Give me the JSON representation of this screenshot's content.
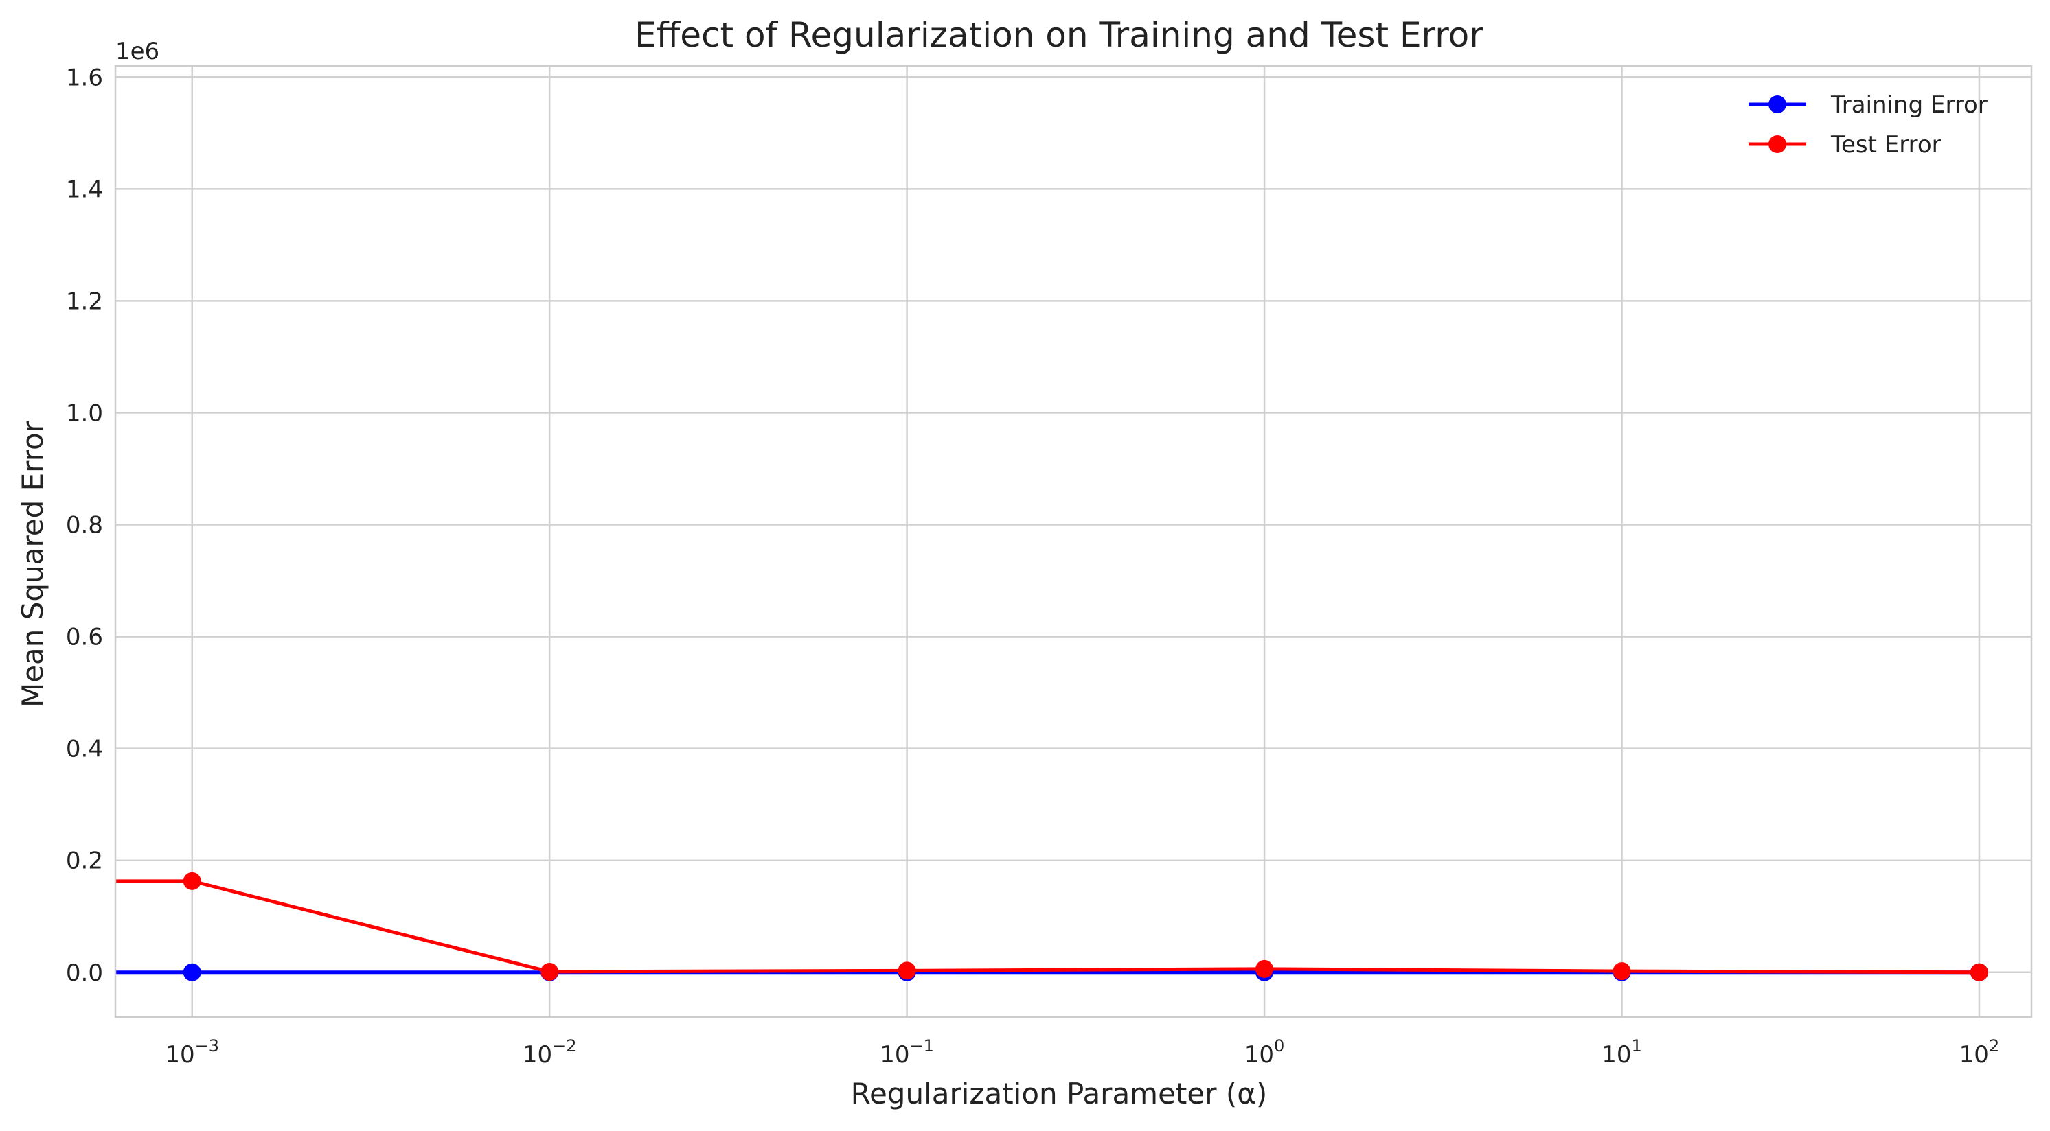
{
  "chart_data": {
    "type": "line",
    "title": "Effect of Regularization on Training and Test Error",
    "xlabel": "Regularization Parameter (α)",
    "ylabel": "Mean Squared Error",
    "y_offset_text": "1e6",
    "x_scale": "log",
    "xlim": [
      0.00061,
      140
    ],
    "ylim": [
      -0.08,
      1.62
    ],
    "y_unit_multiplier": 1000000,
    "x": [
      0.001,
      0.01,
      0.1,
      1,
      10,
      100
    ],
    "x_ticks": [
      {
        "value": 0.001,
        "base": "10",
        "exp": "−3"
      },
      {
        "value": 0.01,
        "base": "10",
        "exp": "−2"
      },
      {
        "value": 0.1,
        "base": "10",
        "exp": "−1"
      },
      {
        "value": 1,
        "base": "10",
        "exp": "0"
      },
      {
        "value": 10,
        "base": "10",
        "exp": "1"
      },
      {
        "value": 100,
        "base": "10",
        "exp": "2"
      }
    ],
    "y_ticks": [
      {
        "value": 0.0,
        "label": "0.0"
      },
      {
        "value": 0.2,
        "label": "0.2"
      },
      {
        "value": 0.4,
        "label": "0.4"
      },
      {
        "value": 0.6,
        "label": "0.6"
      },
      {
        "value": 0.8,
        "label": "0.8"
      },
      {
        "value": 1.0,
        "label": "1.0"
      },
      {
        "value": 1.2,
        "label": "1.2"
      },
      {
        "value": 1.4,
        "label": "1.4"
      },
      {
        "value": 1.6,
        "label": "1.6"
      }
    ],
    "series": [
      {
        "name": "Training Error",
        "color": "#0000ff",
        "values": [
          0.0,
          0.0,
          0.0,
          0.0,
          0.0,
          0.0
        ]
      },
      {
        "name": "Test Error",
        "color": "#ff0000",
        "values": [
          0.163,
          0.001,
          0.003,
          0.006,
          0.002,
          0.0
        ]
      }
    ],
    "grid": true,
    "legend_position": "top-right"
  }
}
